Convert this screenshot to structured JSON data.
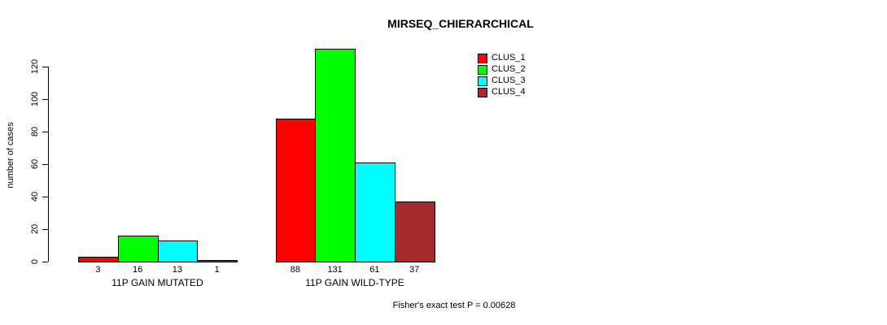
{
  "title": "MIRSEQ_CHIERARCHICAL",
  "footer": "Fisher's exact test P = 0.00628",
  "chart_data": {
    "type": "bar",
    "title": "MIRSEQ_CHIERARCHICAL",
    "xlabel": "",
    "ylabel": "number of cases",
    "ylim": [
      0,
      120
    ],
    "yticks": [
      0,
      20,
      40,
      60,
      80,
      100,
      120
    ],
    "grid": false,
    "legend_position": "top-right",
    "bar_value_labels_shown": true,
    "annotation": "Fisher's exact test P = 0.00628",
    "categories": [
      "11P GAIN MUTATED",
      "11P GAIN WILD-TYPE"
    ],
    "series": [
      {
        "name": "CLUS_1",
        "color": "#FF0000",
        "values": [
          3,
          88
        ]
      },
      {
        "name": "CLUS_2",
        "color": "#00FF00",
        "values": [
          16,
          131
        ]
      },
      {
        "name": "CLUS_3",
        "color": "#00FFFF",
        "values": [
          13,
          61
        ]
      },
      {
        "name": "CLUS_4",
        "color": "#A52A2A",
        "values": [
          1,
          37
        ]
      }
    ]
  }
}
